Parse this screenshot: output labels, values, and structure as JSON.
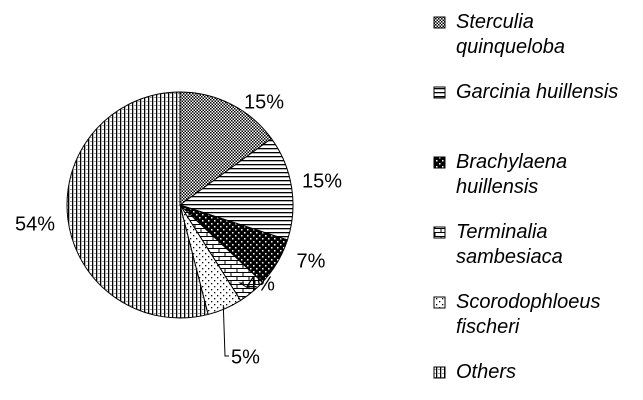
{
  "chart_data": {
    "type": "pie",
    "categories": [
      "Sterculia quinqueloba",
      "Garcinia huillensis",
      "Brachylaena huillensis",
      "Terminalia sambesiaca",
      "Scorodophloeus fischeri",
      "Others"
    ],
    "values": [
      15,
      15,
      7,
      4,
      5,
      54
    ],
    "value_labels": [
      "15%",
      "15%",
      "7%",
      "4%",
      "5%",
      "54%"
    ],
    "legend": "right"
  }
}
